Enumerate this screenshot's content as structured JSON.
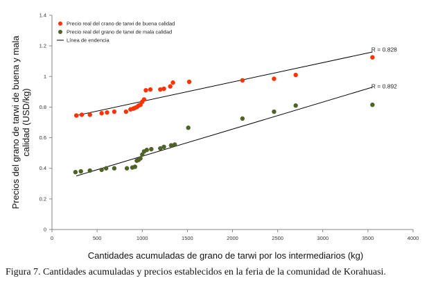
{
  "chart_data": {
    "type": "scatter",
    "title": "",
    "xlabel": "Cantidades acumuladas de grano de tarwi por los intermediarios (kg)",
    "ylabel": "Precios del grano de tarwi de buena y mala calidad (USD/kg)",
    "ylabel_lines": [
      "Precios del grano de tarwi de buena y mala",
      "calidad (USD/kg)"
    ],
    "xlim": [
      0,
      4000
    ],
    "ylim": [
      0,
      1.4
    ],
    "x_ticks": [
      0,
      500,
      1000,
      1500,
      2000,
      2500,
      3000,
      3500,
      4000
    ],
    "y_ticks": [
      0,
      0.2,
      0.4,
      0.6,
      0.8,
      1,
      1.2,
      1.4
    ],
    "x_tick_labels": [
      "0",
      "500",
      "1000",
      "1500",
      "2000",
      "2500",
      "3000",
      "3500",
      "4000"
    ],
    "y_tick_labels": [
      "0",
      "0.2",
      "0.4",
      "0.6",
      "0.8",
      "1",
      "1.2",
      "1.4"
    ],
    "legend_position": "top-left",
    "series": [
      {
        "name": "Precio real del crano de tarwi de buena calidad",
        "color": "#ff3300",
        "points": [
          {
            "x": 270,
            "y": 0.745
          },
          {
            "x": 330,
            "y": 0.75
          },
          {
            "x": 420,
            "y": 0.75
          },
          {
            "x": 550,
            "y": 0.76
          },
          {
            "x": 610,
            "y": 0.765
          },
          {
            "x": 690,
            "y": 0.77
          },
          {
            "x": 820,
            "y": 0.77
          },
          {
            "x": 870,
            "y": 0.785
          },
          {
            "x": 900,
            "y": 0.79
          },
          {
            "x": 920,
            "y": 0.795
          },
          {
            "x": 940,
            "y": 0.8
          },
          {
            "x": 960,
            "y": 0.81
          },
          {
            "x": 980,
            "y": 0.815
          },
          {
            "x": 1000,
            "y": 0.835
          },
          {
            "x": 1020,
            "y": 0.85
          },
          {
            "x": 1040,
            "y": 0.91
          },
          {
            "x": 1090,
            "y": 0.915
          },
          {
            "x": 1200,
            "y": 0.915
          },
          {
            "x": 1240,
            "y": 0.92
          },
          {
            "x": 1310,
            "y": 0.935
          },
          {
            "x": 1340,
            "y": 0.96
          },
          {
            "x": 1520,
            "y": 0.965
          },
          {
            "x": 2110,
            "y": 0.975
          },
          {
            "x": 2460,
            "y": 0.985
          },
          {
            "x": 2700,
            "y": 1.01
          },
          {
            "x": 3550,
            "y": 1.125
          }
        ]
      },
      {
        "name": "Precio real del grano de tarwi de mala calidad",
        "color": "#4f6228",
        "points": [
          {
            "x": 260,
            "y": 0.375
          },
          {
            "x": 320,
            "y": 0.38
          },
          {
            "x": 420,
            "y": 0.385
          },
          {
            "x": 550,
            "y": 0.39
          },
          {
            "x": 600,
            "y": 0.4
          },
          {
            "x": 690,
            "y": 0.4
          },
          {
            "x": 830,
            "y": 0.4
          },
          {
            "x": 890,
            "y": 0.405
          },
          {
            "x": 920,
            "y": 0.41
          },
          {
            "x": 940,
            "y": 0.45
          },
          {
            "x": 960,
            "y": 0.455
          },
          {
            "x": 980,
            "y": 0.465
          },
          {
            "x": 1000,
            "y": 0.49
          },
          {
            "x": 1020,
            "y": 0.51
          },
          {
            "x": 1050,
            "y": 0.52
          },
          {
            "x": 1100,
            "y": 0.525
          },
          {
            "x": 1200,
            "y": 0.53
          },
          {
            "x": 1240,
            "y": 0.54
          },
          {
            "x": 1320,
            "y": 0.55
          },
          {
            "x": 1360,
            "y": 0.555
          },
          {
            "x": 1510,
            "y": 0.665
          },
          {
            "x": 2110,
            "y": 0.725
          },
          {
            "x": 2460,
            "y": 0.77
          },
          {
            "x": 2700,
            "y": 0.81
          },
          {
            "x": 3550,
            "y": 0.815
          }
        ]
      }
    ],
    "trendlines": [
      {
        "name": "Línea de endencia",
        "x": [
          270,
          3550
        ],
        "y": [
          0.745,
          1.16
        ],
        "label": "R  = 0.828",
        "label_at": {
          "x": 3630,
          "y": 1.175
        }
      },
      {
        "name": "Línea de endencia",
        "x": [
          270,
          3550
        ],
        "y": [
          0.35,
          0.93
        ],
        "label": "R  = 0.892",
        "label_at": {
          "x": 3630,
          "y": 0.935
        }
      }
    ],
    "legend": [
      {
        "label": "Precio real del crano de tarwi de buena calidad",
        "marker": "dot",
        "color": "#ff3300"
      },
      {
        "label": "Precio real del grano de tarwi de mala calidad",
        "marker": "dot",
        "color": "#4f6228"
      },
      {
        "label": "Línea de endencia",
        "marker": "line",
        "color": "#000000"
      }
    ]
  },
  "caption": "Figura 7. Cantidades acumuladas y precios establecidos en la feria de la comunidad de Korahuasi."
}
